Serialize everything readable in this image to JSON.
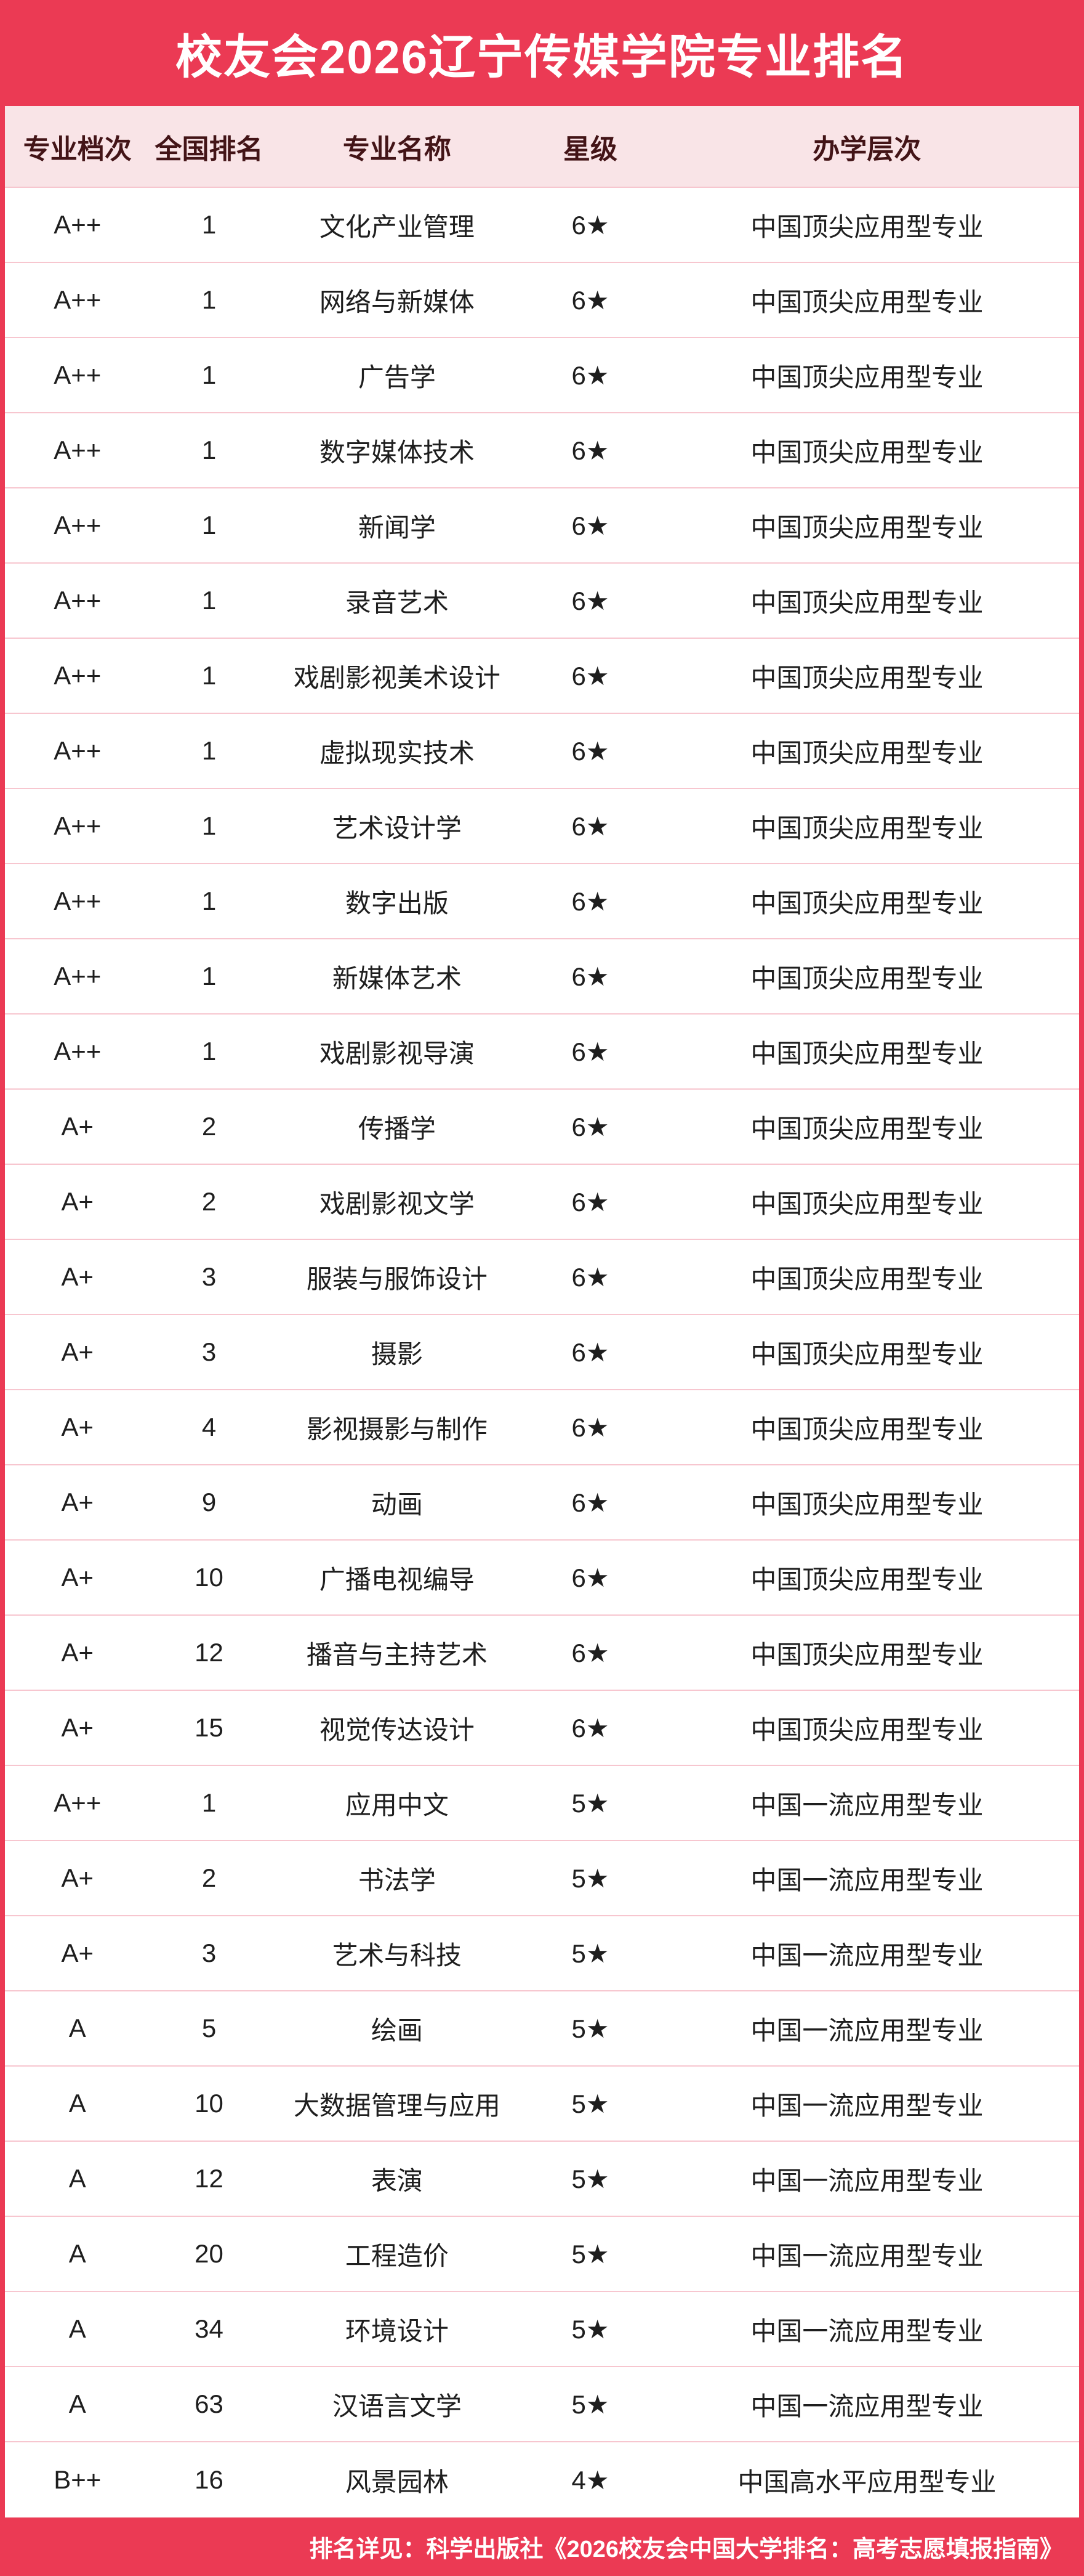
{
  "title": "校友会2026辽宁传媒学院专业排名",
  "colors": {
    "primary_red": "#EB3A54",
    "header_bg": "#F9E4E7",
    "header_text": "#431417",
    "row_divider": "#F7C6CF",
    "body_text": "#1E1E1E",
    "title_text": "#FFFFFF",
    "footer_text": "#FFFFFF"
  },
  "chart_data": {
    "type": "table",
    "title": "校友会2026辽宁传媒学院专业排名",
    "columns": [
      "专业档次",
      "全国排名",
      "专业名称",
      "星级",
      "办学层次"
    ],
    "rows": [
      {
        "grade": "A++",
        "rank": "1",
        "major": "文化产业管理",
        "star": "6★",
        "level": "中国顶尖应用型专业"
      },
      {
        "grade": "A++",
        "rank": "1",
        "major": "网络与新媒体",
        "star": "6★",
        "level": "中国顶尖应用型专业"
      },
      {
        "grade": "A++",
        "rank": "1",
        "major": "广告学",
        "star": "6★",
        "level": "中国顶尖应用型专业"
      },
      {
        "grade": "A++",
        "rank": "1",
        "major": "数字媒体技术",
        "star": "6★",
        "level": "中国顶尖应用型专业"
      },
      {
        "grade": "A++",
        "rank": "1",
        "major": "新闻学",
        "star": "6★",
        "level": "中国顶尖应用型专业"
      },
      {
        "grade": "A++",
        "rank": "1",
        "major": "录音艺术",
        "star": "6★",
        "level": "中国顶尖应用型专业"
      },
      {
        "grade": "A++",
        "rank": "1",
        "major": "戏剧影视美术设计",
        "star": "6★",
        "level": "中国顶尖应用型专业"
      },
      {
        "grade": "A++",
        "rank": "1",
        "major": "虚拟现实技术",
        "star": "6★",
        "level": "中国顶尖应用型专业"
      },
      {
        "grade": "A++",
        "rank": "1",
        "major": "艺术设计学",
        "star": "6★",
        "level": "中国顶尖应用型专业"
      },
      {
        "grade": "A++",
        "rank": "1",
        "major": "数字出版",
        "star": "6★",
        "level": "中国顶尖应用型专业"
      },
      {
        "grade": "A++",
        "rank": "1",
        "major": "新媒体艺术",
        "star": "6★",
        "level": "中国顶尖应用型专业"
      },
      {
        "grade": "A++",
        "rank": "1",
        "major": "戏剧影视导演",
        "star": "6★",
        "level": "中国顶尖应用型专业"
      },
      {
        "grade": "A+",
        "rank": "2",
        "major": "传播学",
        "star": "6★",
        "level": "中国顶尖应用型专业"
      },
      {
        "grade": "A+",
        "rank": "2",
        "major": "戏剧影视文学",
        "star": "6★",
        "level": "中国顶尖应用型专业"
      },
      {
        "grade": "A+",
        "rank": "3",
        "major": "服装与服饰设计",
        "star": "6★",
        "level": "中国顶尖应用型专业"
      },
      {
        "grade": "A+",
        "rank": "3",
        "major": "摄影",
        "star": "6★",
        "level": "中国顶尖应用型专业"
      },
      {
        "grade": "A+",
        "rank": "4",
        "major": "影视摄影与制作",
        "star": "6★",
        "level": "中国顶尖应用型专业"
      },
      {
        "grade": "A+",
        "rank": "9",
        "major": "动画",
        "star": "6★",
        "level": "中国顶尖应用型专业"
      },
      {
        "grade": "A+",
        "rank": "10",
        "major": "广播电视编导",
        "star": "6★",
        "level": "中国顶尖应用型专业"
      },
      {
        "grade": "A+",
        "rank": "12",
        "major": "播音与主持艺术",
        "star": "6★",
        "level": "中国顶尖应用型专业"
      },
      {
        "grade": "A+",
        "rank": "15",
        "major": "视觉传达设计",
        "star": "6★",
        "level": "中国顶尖应用型专业"
      },
      {
        "grade": "A++",
        "rank": "1",
        "major": "应用中文",
        "star": "5★",
        "level": "中国一流应用型专业"
      },
      {
        "grade": "A+",
        "rank": "2",
        "major": "书法学",
        "star": "5★",
        "level": "中国一流应用型专业"
      },
      {
        "grade": "A+",
        "rank": "3",
        "major": "艺术与科技",
        "star": "5★",
        "level": "中国一流应用型专业"
      },
      {
        "grade": "A",
        "rank": "5",
        "major": "绘画",
        "star": "5★",
        "level": "中国一流应用型专业"
      },
      {
        "grade": "A",
        "rank": "10",
        "major": "大数据管理与应用",
        "star": "5★",
        "level": "中国一流应用型专业"
      },
      {
        "grade": "A",
        "rank": "12",
        "major": "表演",
        "star": "5★",
        "level": "中国一流应用型专业"
      },
      {
        "grade": "A",
        "rank": "20",
        "major": "工程造价",
        "star": "5★",
        "level": "中国一流应用型专业"
      },
      {
        "grade": "A",
        "rank": "34",
        "major": "环境设计",
        "star": "5★",
        "level": "中国一流应用型专业"
      },
      {
        "grade": "A",
        "rank": "63",
        "major": "汉语言文学",
        "star": "5★",
        "level": "中国一流应用型专业"
      },
      {
        "grade": "B++",
        "rank": "16",
        "major": "风景园林",
        "star": "4★",
        "level": "中国高水平应用型专业"
      }
    ]
  },
  "footer": {
    "note": "排名详见：科学出版社《2026校友会中国大学排名：高考志愿填报指南》"
  }
}
